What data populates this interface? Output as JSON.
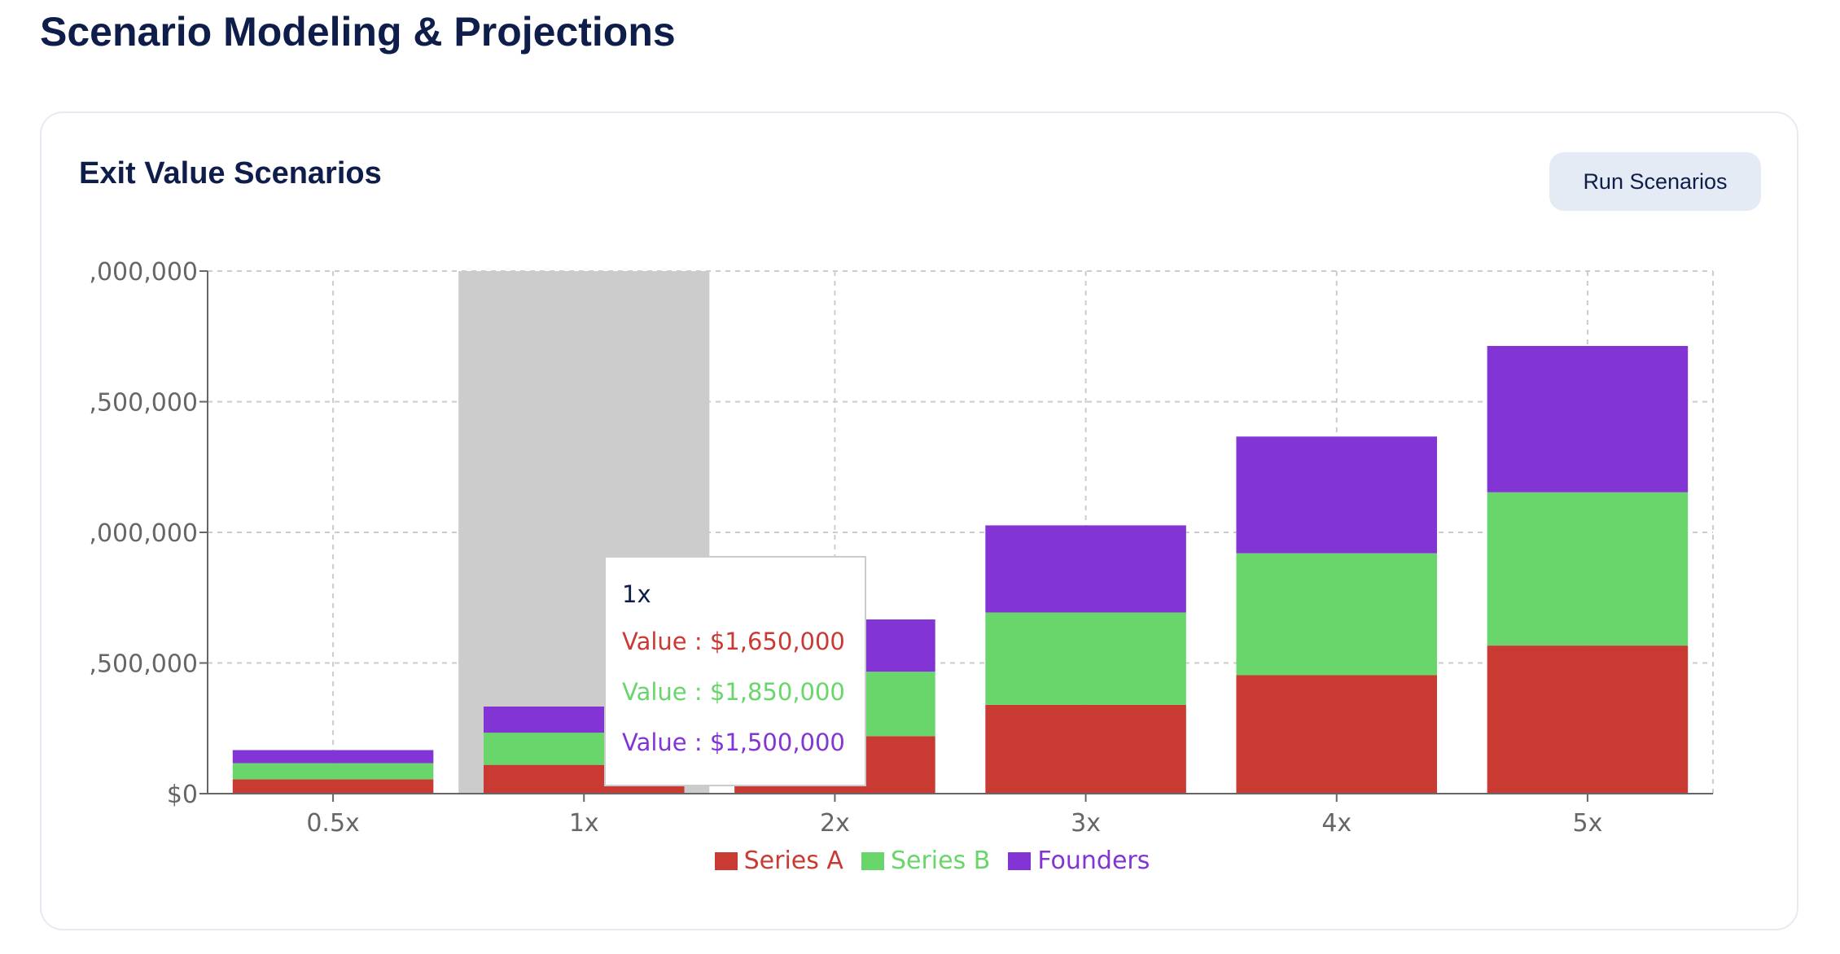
{
  "page": {
    "title": "Scenario Modeling & Projections"
  },
  "card": {
    "title": "Exit Value Scenarios",
    "run_label": "Run Scenarios"
  },
  "tooltip": {
    "label": "1x",
    "rows": [
      {
        "text": "Value : $1,650,000",
        "color": "#c93a32"
      },
      {
        "text": "Value : $1,850,000",
        "color": "#69d66b"
      },
      {
        "text": "Value : $1,500,000",
        "color": "#8234d4"
      }
    ]
  },
  "chart_data": {
    "type": "bar",
    "stacked": true,
    "categories": [
      "0.5x",
      "1x",
      "2x",
      "3x",
      "4x",
      "5x"
    ],
    "series": [
      {
        "name": "Series A",
        "color": "#c93a32",
        "values": [
          825000,
          1650000,
          3300000,
          5100000,
          6800000,
          8500000
        ]
      },
      {
        "name": "Series B",
        "color": "#69d66b",
        "values": [
          925000,
          1850000,
          3700000,
          5300000,
          7000000,
          8800000
        ]
      },
      {
        "name": "Founders",
        "color": "#8234d4",
        "values": [
          750000,
          1500000,
          3000000,
          5000000,
          6700000,
          8400000
        ]
      }
    ],
    "y_ticks": [
      {
        "value": 0,
        "label": "$0"
      },
      {
        "value": 7500000,
        "label": ",500,000"
      },
      {
        "value": 15000000,
        "label": ",000,000"
      },
      {
        "value": 22500000,
        "label": ",500,000"
      },
      {
        "value": 30000000,
        "label": ",000,000"
      }
    ],
    "ylim": [
      0,
      30000000
    ],
    "grid": true,
    "highlight_category": "1x",
    "legend_position": "bottom"
  }
}
